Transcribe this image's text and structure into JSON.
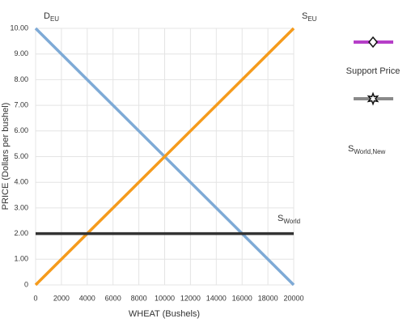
{
  "chart_data": {
    "type": "line",
    "x_label": "WHEAT (Bushels)",
    "y_label": "PRICE (Dollars per bushel)",
    "x": [
      0,
      20000
    ],
    "series": [
      {
        "name": "D",
        "subscript": "EU",
        "color": "#7eaad6",
        "values": [
          10,
          0
        ]
      },
      {
        "name": "S",
        "subscript": "EU",
        "color": "#f59b1c",
        "values": [
          0,
          10
        ]
      },
      {
        "name": "S",
        "subscript": "World",
        "color": "#333333",
        "values": [
          2,
          2
        ]
      }
    ],
    "xlim": [
      0,
      20000
    ],
    "xticks": [
      0,
      2000,
      4000,
      6000,
      8000,
      10000,
      12000,
      14000,
      16000,
      18000,
      20000
    ],
    "ylim": [
      0,
      10
    ],
    "yticks": [
      0,
      {
        "value": 1,
        "label": "1.00"
      },
      {
        "value": 2,
        "label": "2.00"
      },
      {
        "value": 3,
        "label": "3.00"
      },
      {
        "value": 4,
        "label": "4.00"
      },
      {
        "value": 5,
        "label": "5.00"
      },
      {
        "value": 6,
        "label": "6.00"
      },
      {
        "value": 7,
        "label": "7.00"
      },
      {
        "value": 8,
        "label": "8.00"
      },
      {
        "value": 9,
        "label": "9.00"
      },
      {
        "value": 10,
        "label": "10.00"
      }
    ],
    "grid": true,
    "legend": [
      {
        "name": "Support Price",
        "color": "#b63fc8",
        "marker": "diamond"
      },
      {
        "name": "S",
        "subscript": "World,New",
        "color": "#8a8a8a",
        "marker": "star"
      }
    ]
  }
}
